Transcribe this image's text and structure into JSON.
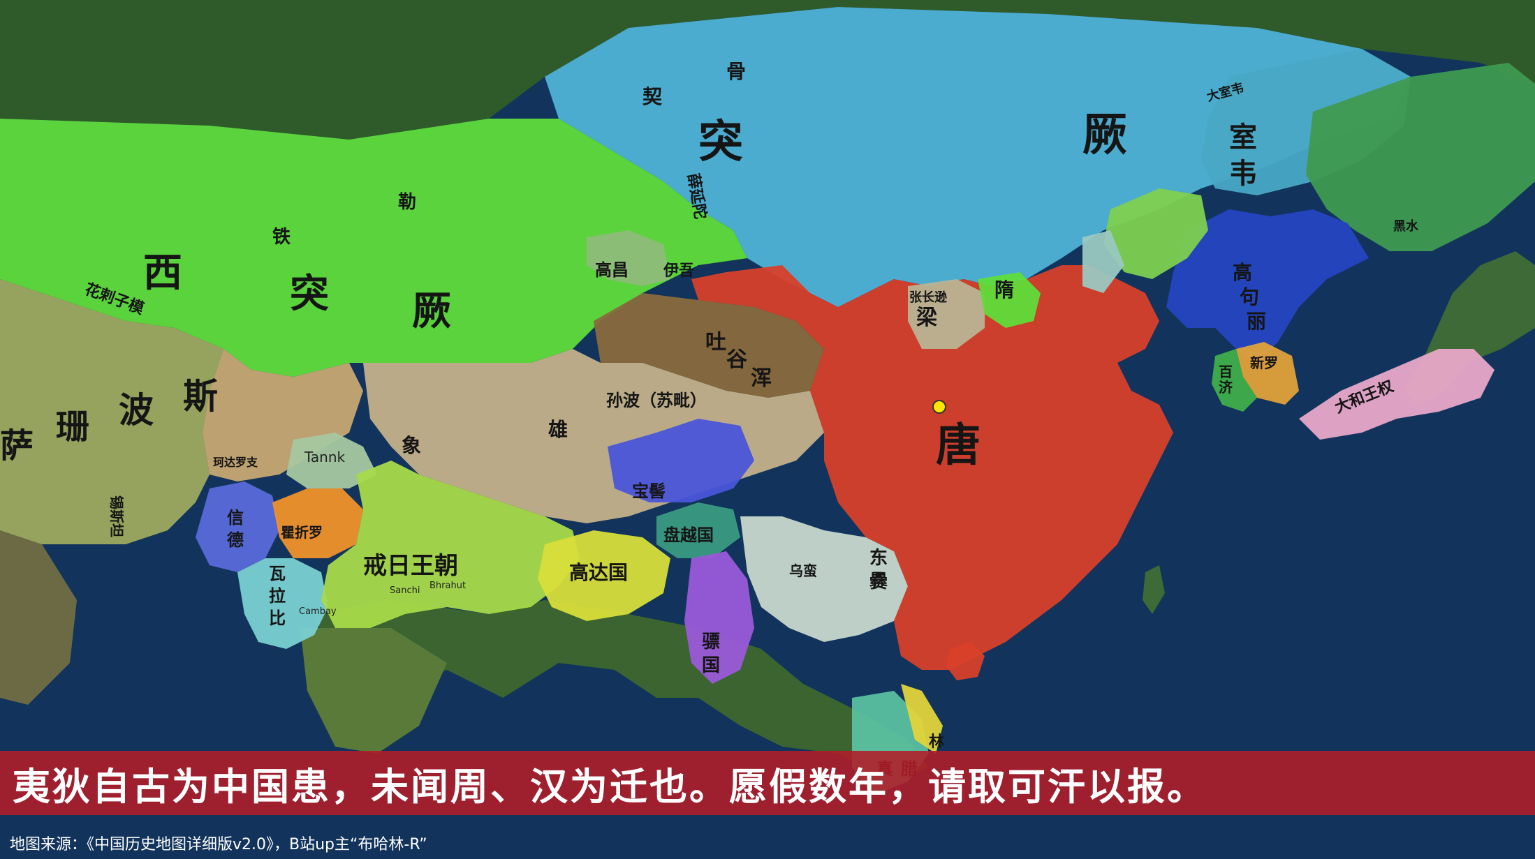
{
  "subtitle": "夷狄自古为中国患，未闻周、汉为迁也。愿假数年，请取可汗以报。",
  "credit": "地图来源：《中国历史地图详细版v2.0》，B站up主“布哈林-R”",
  "colors": {
    "tang": "#d8402a",
    "eastern_turks": "#4fb3d6",
    "western_turks": "#5fdc3a",
    "tibet": "#8a6a3c",
    "sea": "#12345c",
    "subtitle_bar": "#b21c28"
  },
  "capital_marker": {
    "color": "#ffe600"
  },
  "map": {
    "big_labels": {
      "tang": "唐",
      "tu": "突",
      "jue": "厥",
      "xi": "西",
      "xi_tu": "突",
      "xi_jue": "厥",
      "bo": "波",
      "si": "斯",
      "sa": "萨",
      "shan": "珊",
      "shi": "室",
      "wei": "韦"
    },
    "labels": {
      "tuyuhun_1": "吐",
      "tuyuhun_2": "谷",
      "tuyuhun_3": "浑",
      "sunbo": "孙波（苏毗）",
      "gaochang": "高昌",
      "yiwu": "伊吾",
      "xiang": "象",
      "xiong": "雄",
      "liang": "梁",
      "sui": "隋",
      "zhangchang": "张长逊",
      "gaogouli_1": "高",
      "gaogouli_2": "句",
      "gaogouli_3": "丽",
      "baiji_1": "百",
      "baiji_2": "济",
      "xinluo": "新罗",
      "dahe": "大和王权",
      "jieri": "戒日王朝",
      "gaodaguo": "高达国",
      "panyue": "盘越国",
      "piaoguo_1": "骠",
      "piaoguo_2": "国",
      "dongxie_1": "东",
      "dongxie_2": "爨",
      "wuman": "乌蛮",
      "baoqi": "宝髻",
      "tielei_1": "铁",
      "tielei_2": "勒",
      "xueyantuo": "薛延陀",
      "xinde_1": "信",
      "xinde_2": "德",
      "jusiluo": "瞿折罗",
      "walabi_1": "瓦",
      "walabi_2": "拉",
      "walabi_3": "比",
      "tank": "Tannk",
      "huacizi": "花剌子模",
      "xisi": "锡斯坦",
      "hedasuo": "珂达罗支",
      "qi": "契",
      "gu": "骨",
      "jiaozhi_1": "真",
      "jiaozhi_2": "腊",
      "linyi": "林",
      "sanchi": "Sanchi",
      "bhrahut": "Bhrahut",
      "cambay": "Cambay",
      "huangtou": "黑水",
      "dashiwei": "大室韦"
    }
  }
}
